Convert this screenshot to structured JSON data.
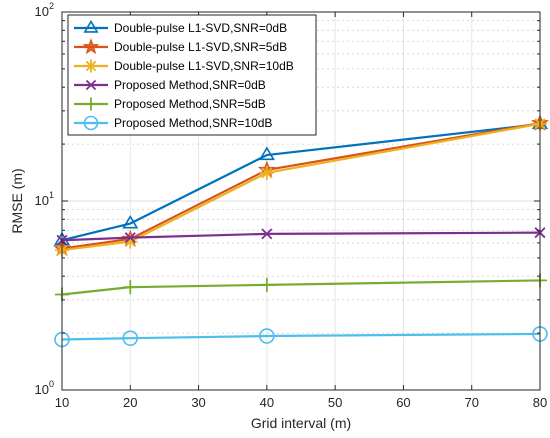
{
  "chart_data": {
    "type": "line",
    "xlabel": "Grid interval (m)",
    "ylabel": "RMSE (m)",
    "xlim": [
      10,
      80
    ],
    "ylim": [
      1,
      100
    ],
    "yscale": "log",
    "grid": true,
    "legend_position": "top-left",
    "x_ticks": [
      "10",
      "20",
      "30",
      "40",
      "50",
      "60",
      "70",
      "80"
    ],
    "x_tick_values": [
      10,
      20,
      30,
      40,
      50,
      60,
      70,
      80
    ],
    "y_ticks": [
      {
        "value": 1,
        "base": "10",
        "exp": "0"
      },
      {
        "value": 10,
        "base": "10",
        "exp": "1"
      },
      {
        "value": 100,
        "base": "10",
        "exp": "2"
      }
    ],
    "x": [
      10,
      20,
      40,
      80
    ],
    "series": [
      {
        "name": "Double-pulse L1-SVD,SNR=0dB",
        "values": [
          6.2,
          7.6,
          17.5,
          25.5
        ],
        "color": "#0072bd",
        "marker": "triangle-icon"
      },
      {
        "name": "Double-pulse L1-SVD,SNR=5dB",
        "values": [
          5.6,
          6.3,
          14.6,
          25.8
        ],
        "color": "#d95319",
        "marker": "star-icon"
      },
      {
        "name": "Double-pulse L1-SVD,SNR=10dB",
        "values": [
          5.5,
          6.1,
          14.1,
          25.6
        ],
        "color": "#edb120",
        "marker": "asterisk-icon"
      },
      {
        "name": "Proposed Method,SNR=0dB",
        "values": [
          6.2,
          6.4,
          6.7,
          6.8
        ],
        "color": "#7e2f8e",
        "marker": "cross-icon"
      },
      {
        "name": "Proposed Method,SNR=5dB",
        "values": [
          3.2,
          3.5,
          3.6,
          3.8
        ],
        "color": "#77ac30",
        "marker": "plus-icon"
      },
      {
        "name": "Proposed Method,SNR=10dB",
        "values": [
          1.85,
          1.88,
          1.93,
          1.98
        ],
        "color": "#4dbeee",
        "marker": "circle-icon"
      }
    ]
  }
}
